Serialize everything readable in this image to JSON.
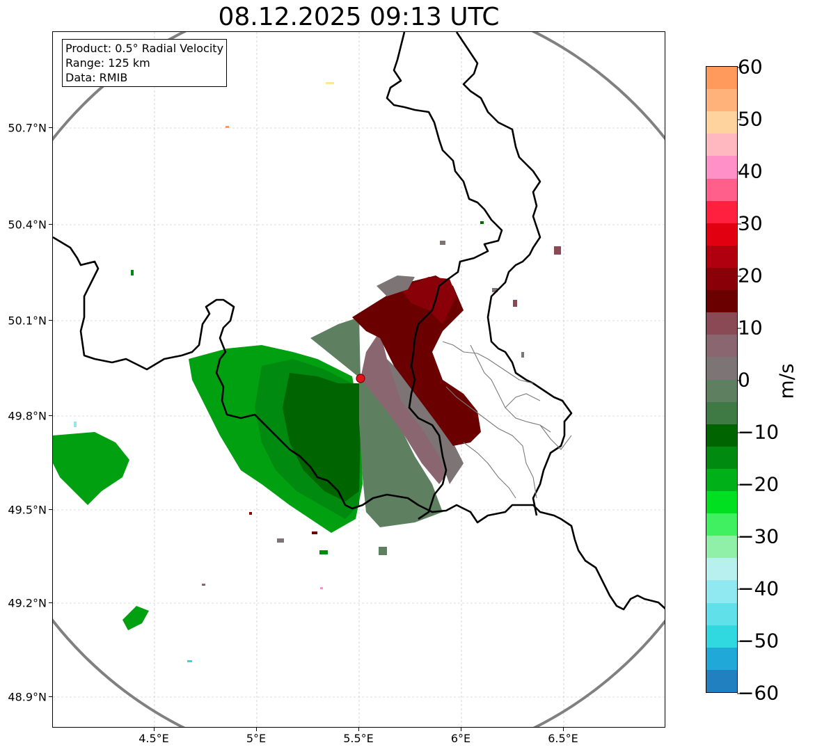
{
  "title": "08.12.2025 09:13 UTC",
  "info": {
    "product": "Product: 0.5° Radial Velocity",
    "range": "Range: 125 km",
    "data": "Data: RMIB"
  },
  "axes": {
    "lat_ticks": [
      "50.7°N",
      "50.4°N",
      "50.1°N",
      "49.8°N",
      "49.5°N",
      "49.2°N",
      "48.9°N"
    ],
    "lon_ticks": [
      "4.5°E",
      "5°E",
      "5.5°E",
      "6°E",
      "6.5°E"
    ]
  },
  "colorbar": {
    "label": "m/s",
    "ticks": [
      "60",
      "50",
      "40",
      "30",
      "20",
      "10",
      "0",
      "−10",
      "−20",
      "−30",
      "−40",
      "−50",
      "−60"
    ],
    "colors": [
      "#ff9a5c",
      "#ffb27a",
      "#ffd39e",
      "#ffb8c0",
      "#ff90c8",
      "#ff5f8a",
      "#ff2040",
      "#e00010",
      "#b00010",
      "#8a0008",
      "#6a0000",
      "#8a4a55",
      "#8a6670",
      "#7d7575",
      "#5e8060",
      "#3f7a44",
      "#006400",
      "#008a10",
      "#00b018",
      "#00e020",
      "#40f060",
      "#90f0a8",
      "#b8f0f0",
      "#90e8f0",
      "#60e0e8",
      "#30d8e0",
      "#20a8d8",
      "#2080c0"
    ],
    "range": [
      -60,
      60
    ]
  },
  "radar": {
    "site_marker": "radar-site",
    "range_ring_color": "#808080"
  }
}
